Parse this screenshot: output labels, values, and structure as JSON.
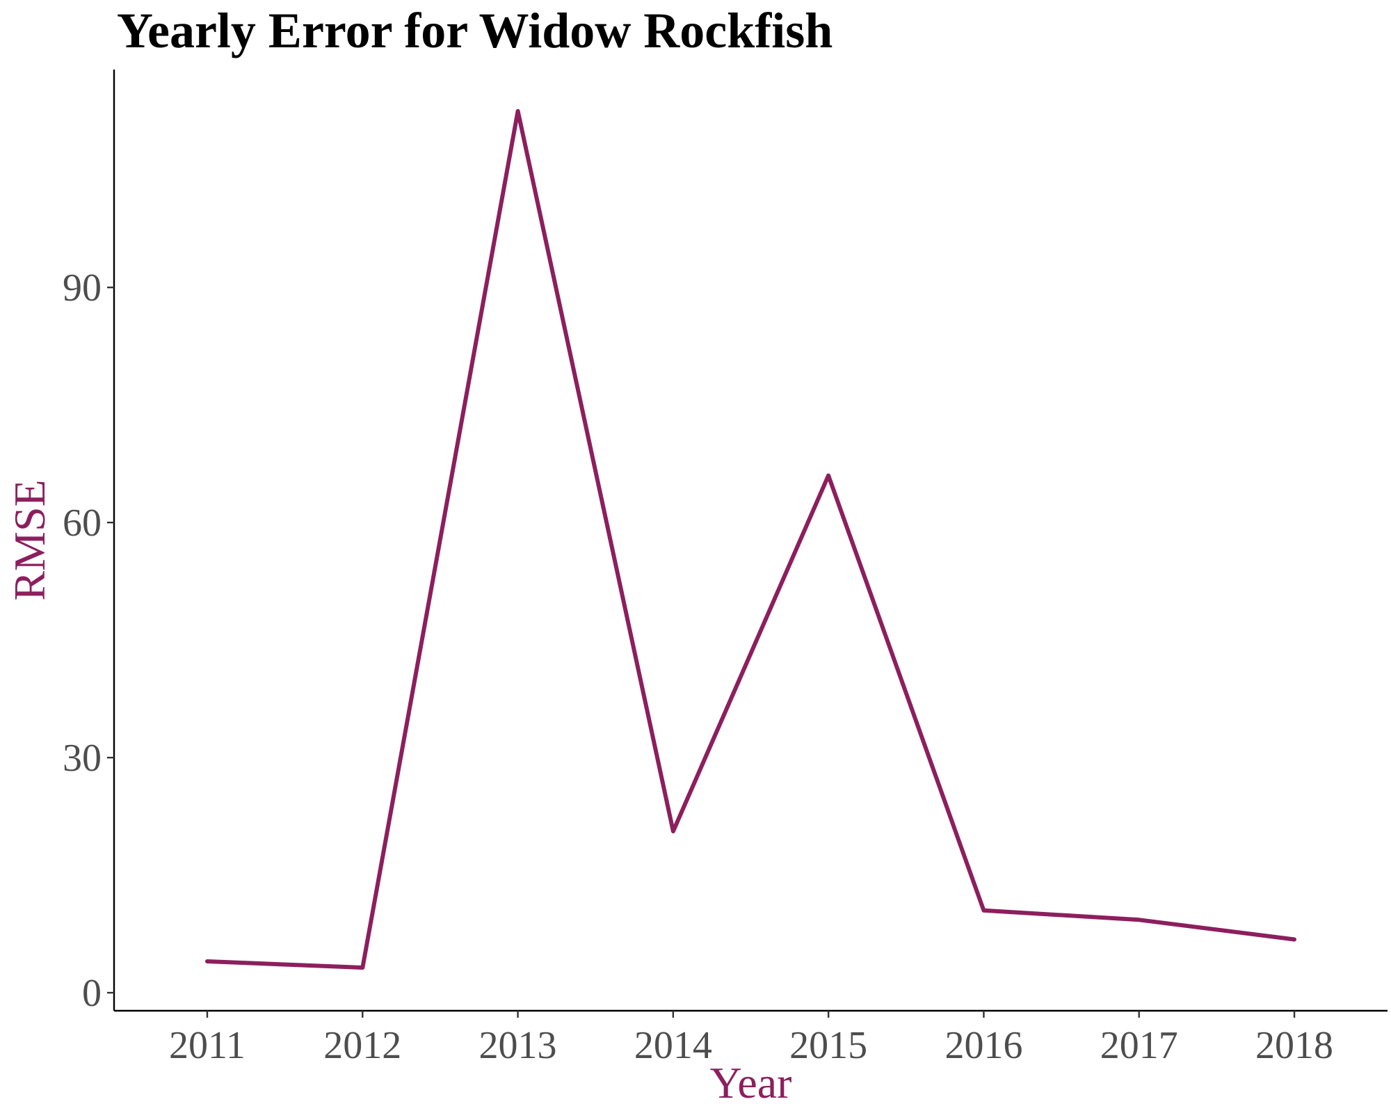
{
  "chart_data": {
    "type": "line",
    "title": "Yearly Error for Widow Rockfish",
    "xlabel": "Year",
    "ylabel": "RMSE",
    "x": [
      "2011",
      "2012",
      "2013",
      "2014",
      "2015",
      "2016",
      "2017",
      "2018"
    ],
    "series": [
      {
        "values": [
          4.0,
          3.2,
          112.5,
          20.6,
          66.0,
          10.5,
          9.3,
          6.8
        ]
      }
    ],
    "yticks": [
      "0",
      "30",
      "60",
      "90"
    ],
    "ylim": [
      -2.3,
      117.8
    ],
    "grid": false,
    "legend": "none",
    "colors": {
      "series": "#8c1f5d",
      "axis_title": "#8c1f5d",
      "title": "#000000",
      "tick_label": "#4d4d4d",
      "axis_line": "#000000"
    }
  }
}
